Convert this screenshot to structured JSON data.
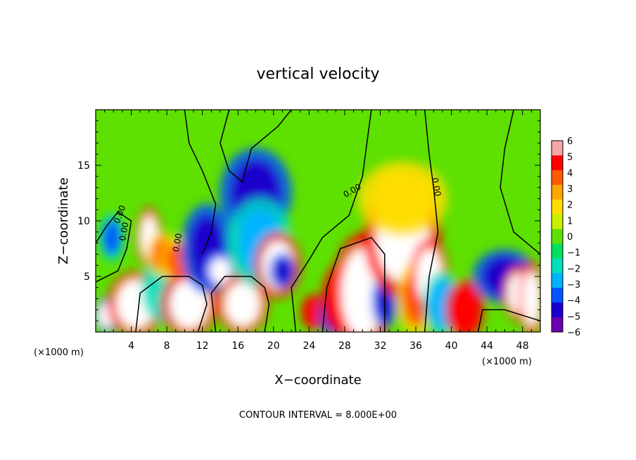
{
  "chart_data": {
    "type": "heatmap",
    "title": "vertical velocity",
    "xlabel": "X−coordinate",
    "ylabel": "Z−coordinate",
    "x_unit": "(×1000 m)",
    "z_unit": "(×1000 m)",
    "xlim": [
      0,
      50
    ],
    "ylim": [
      0,
      20
    ],
    "x_ticks": [
      4,
      8,
      12,
      16,
      20,
      24,
      28,
      32,
      36,
      40,
      44,
      48
    ],
    "y_ticks": [
      5,
      10,
      15
    ],
    "colorbar": {
      "range": [
        -6,
        6
      ],
      "labels": [
        "6",
        "5",
        "4",
        "3",
        "2",
        "1",
        "0",
        "−1",
        "−2",
        "−3",
        "−4",
        "−5",
        "−6"
      ],
      "colors": [
        "#f4a6a6",
        "#ff0000",
        "#ff5a00",
        "#ffa500",
        "#ffdd00",
        "#c8f000",
        "#5ee000",
        "#00e060",
        "#00e0c0",
        "#00b4ff",
        "#0055ff",
        "#1a00cc",
        "#6a00b0"
      ]
    },
    "contour_labels": [
      "0.00",
      "0.00",
      "0.00",
      "0.00",
      "0.00"
    ],
    "contour_interval": "CONTOUR INTERVAL =  8.000E+00",
    "features": [
      {
        "x": 1.2,
        "z": 1.5,
        "value": -6
      },
      {
        "x": 1.8,
        "z": 8.5,
        "value": -4
      },
      {
        "x": 4.5,
        "z": 2.5,
        "value": 6
      },
      {
        "x": 6.0,
        "z": 8.5,
        "value": 6
      },
      {
        "x": 8.0,
        "z": 4.0,
        "value": -2
      },
      {
        "x": 7.5,
        "z": 7.0,
        "value": 4
      },
      {
        "x": 9.0,
        "z": 6.5,
        "value": 4
      },
      {
        "x": 10.5,
        "z": 2.5,
        "value": 6
      },
      {
        "x": 12.5,
        "z": 7.5,
        "value": -5
      },
      {
        "x": 14.0,
        "z": 5.5,
        "value": -6
      },
      {
        "x": 16.5,
        "z": 2.5,
        "value": 6
      },
      {
        "x": 18.0,
        "z": 12.5,
        "value": -5
      },
      {
        "x": 18.5,
        "z": 8.0,
        "value": -3
      },
      {
        "x": 20.5,
        "z": 6.0,
        "value": 6
      },
      {
        "x": 21.0,
        "z": 5.5,
        "value": -5
      },
      {
        "x": 24.5,
        "z": 1.8,
        "value": 5
      },
      {
        "x": 26.5,
        "z": 1.6,
        "value": -5
      },
      {
        "x": 28.0,
        "z": 3.0,
        "value": 5
      },
      {
        "x": 30.0,
        "z": 3.5,
        "value": 6
      },
      {
        "x": 32.5,
        "z": 2.8,
        "value": -5
      },
      {
        "x": 34.5,
        "z": 8.5,
        "value": 6
      },
      {
        "x": 34.5,
        "z": 12.0,
        "value": 2
      },
      {
        "x": 36.0,
        "z": 3.0,
        "value": 4
      },
      {
        "x": 37.5,
        "z": 5.0,
        "value": 6
      },
      {
        "x": 39.0,
        "z": 2.5,
        "value": -3
      },
      {
        "x": 41.5,
        "z": 2.0,
        "value": 5
      },
      {
        "x": 46.0,
        "z": 5.0,
        "value": -5
      },
      {
        "x": 47.5,
        "z": 3.5,
        "value": 6
      },
      {
        "x": 49.0,
        "z": 3.0,
        "value": 6
      }
    ],
    "grid": false,
    "legend": "right"
  }
}
